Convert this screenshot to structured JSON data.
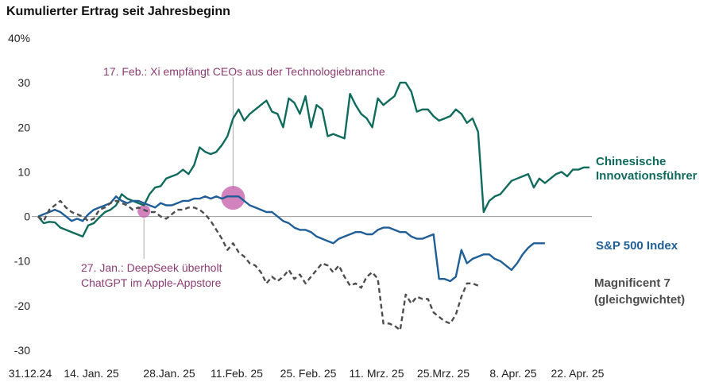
{
  "chart_data": {
    "type": "line",
    "title": "Kumulierter Ertrag seit Jahresbeginn",
    "xlabel": "",
    "ylabel": "",
    "ylim": [
      -30,
      40
    ],
    "y_ticks": [
      "40%",
      "30",
      "20",
      "10",
      "0",
      "-10",
      "-20",
      "-30"
    ],
    "x_ticks": [
      "31.12.24",
      "14. Jan. 25",
      "28.Jan. 25",
      "11.Feb. 25",
      "25. Feb. 25",
      "11. Mrz. 25",
      "25.Mrz. 25",
      "8. Apr. 25",
      "22. Apr. 25"
    ],
    "grid": false,
    "series": [
      {
        "name": "Chinesische Innovationsführer",
        "color": "#0f6b5c",
        "style": "solid",
        "values": [
          0,
          -1.5,
          -1.2,
          -1.3,
          -2.5,
          -3.0,
          -3.5,
          -4.0,
          -4.5,
          -2.0,
          -1.5,
          -0.2,
          1.0,
          1.5,
          2.5,
          5.0,
          4.0,
          3.5,
          3.0,
          2.5,
          5.0,
          6.5,
          6.8,
          8.5,
          9.0,
          9.5,
          10.5,
          9.5,
          11.5,
          15.5,
          14.5,
          14.0,
          14.5,
          16.0,
          18.0,
          22.0,
          24.0,
          21.5,
          23.0,
          24.0,
          25.0,
          26.0,
          23.5,
          23.0,
          20.0,
          26.5,
          25.5,
          23.0,
          27.0,
          20.0,
          25.0,
          24.0,
          18.0,
          18.5,
          18.0,
          17.5,
          27.5,
          25.0,
          23.0,
          22.0,
          20.0,
          26.5,
          25.0,
          26.0,
          27.0,
          30.0,
          30.0,
          28.0,
          23.5,
          24.0,
          24.0,
          22.5,
          21.5,
          22.0,
          22.5,
          24.0,
          23.0,
          21.0,
          22.0,
          19.0,
          1.0,
          3.5,
          4.5,
          5.0,
          6.5,
          8.0,
          8.5,
          9.0,
          9.5,
          6.5,
          8.5,
          7.5,
          8.5,
          9.5,
          10.0,
          9.0,
          10.5,
          10.5,
          11.0,
          11.0
        ]
      },
      {
        "name": "S&P 500 Index",
        "color": "#1f5e96",
        "style": "solid",
        "values": [
          0,
          0.5,
          1.0,
          1.5,
          1.0,
          0.0,
          -1.0,
          -0.5,
          -1.0,
          0.5,
          1.5,
          2.0,
          2.5,
          3.0,
          4.5,
          3.5,
          3.0,
          3.5,
          3.5,
          3.0,
          2.5,
          2.0,
          3.0,
          2.5,
          2.5,
          3.0,
          3.5,
          3.5,
          4.0,
          4.0,
          4.5,
          4.0,
          4.5,
          4.0,
          4.5,
          4.5,
          4.5,
          3.5,
          2.5,
          2.0,
          1.5,
          1.0,
          1.0,
          0.0,
          -1.0,
          -1.5,
          -2.5,
          -3.0,
          -3.0,
          -3.5,
          -4.5,
          -5.0,
          -5.5,
          -6.0,
          -5.0,
          -4.5,
          -4.0,
          -3.5,
          -3.5,
          -4.0,
          -4.0,
          -3.0,
          -2.5,
          -2.5,
          -3.0,
          -3.5,
          -3.5,
          -4.5,
          -5.0,
          -5.0,
          -4.5,
          -4.0,
          -14.0,
          -14.0,
          -14.5,
          -13.5,
          -7.5,
          -10.5,
          -9.5,
          -9.0,
          -8.5,
          -8.5,
          -9.5,
          -10.0,
          -11.0,
          -12.0,
          -10.5,
          -8.5,
          -7.0,
          -6.0,
          -6.0,
          -6.0
        ]
      },
      {
        "name": "Magnificent 7 (gleichgwichtet)",
        "color": "#4d4d4d",
        "style": "dashed",
        "values": [
          0,
          -1.0,
          1.5,
          2.5,
          3.5,
          2.0,
          1.0,
          0.5,
          0.0,
          -1.0,
          -0.5,
          1.5,
          2.0,
          3.0,
          3.5,
          3.0,
          2.5,
          1.5,
          2.0,
          1.5,
          1.0,
          1.0,
          0.0,
          -0.5,
          0.5,
          1.5,
          1.5,
          2.0,
          2.0,
          1.5,
          0.5,
          -1.0,
          -3.0,
          -5.0,
          -7.5,
          -6.0,
          -8.0,
          -9.0,
          -10.5,
          -11.0,
          -12.5,
          -15.0,
          -13.5,
          -14.5,
          -13.5,
          -12.0,
          -14.0,
          -13.0,
          -15.0,
          -13.5,
          -12.0,
          -10.5,
          -11.0,
          -12.5,
          -11.0,
          -13.5,
          -15.5,
          -15.0,
          -16.0,
          -13.5,
          -12.5,
          -14.0,
          -24.0,
          -24.0,
          -24.5,
          -25.5,
          -17.5,
          -19.5,
          -18.0,
          -18.5,
          -18.5,
          -21.5,
          -22.5,
          -23.5,
          -24.0,
          -22.0,
          -18.0,
          -15.0,
          -15.0,
          -15.5
        ]
      }
    ],
    "series_labels": [
      {
        "line1": "Chinesische",
        "line2": "Innovationsführer"
      },
      {
        "line1": "S&P 500 Index",
        "line2": ""
      },
      {
        "line1": "Magnificent 7",
        "line2": "(gleichgwichtet)"
      }
    ],
    "annotations": [
      {
        "text": "17. Feb.: Xi empfängt CEOs aus der Technologiebranche",
        "x_index": 35,
        "y": 4.0,
        "color": "#c35aa8"
      },
      {
        "text1": "27. Jan.: DeepSeek überholt",
        "text2": "ChatGPT im Apple-Appstore",
        "x_index": 19,
        "y": 1.0,
        "color": "#c35aa8"
      }
    ]
  }
}
